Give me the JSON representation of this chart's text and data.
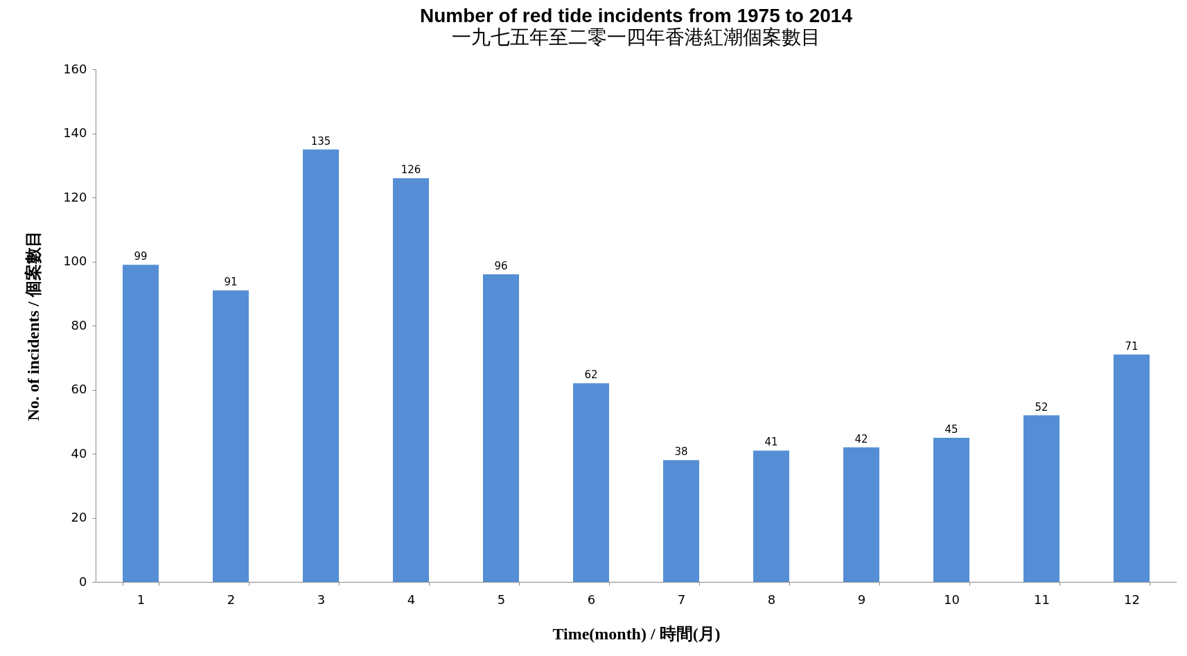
{
  "chart_data": {
    "type": "bar",
    "title": "Number of red tide incidents from 1975 to 2014",
    "subtitle": "一九七五年至二零一四年香港紅潮個案數目",
    "xlabel": "Time(month) / 時間(月)",
    "ylabel": "No. of incidents / 個案數目",
    "categories": [
      "1",
      "2",
      "3",
      "4",
      "5",
      "6",
      "7",
      "8",
      "9",
      "10",
      "11",
      "12"
    ],
    "values": [
      99,
      91,
      135,
      126,
      96,
      62,
      38,
      41,
      42,
      45,
      52,
      71
    ],
    "color": "#558ed5",
    "ylim": [
      0,
      160
    ],
    "yticks": [
      0,
      20,
      40,
      60,
      80,
      100,
      120,
      140,
      160
    ],
    "grid": false,
    "data_labels": true
  }
}
